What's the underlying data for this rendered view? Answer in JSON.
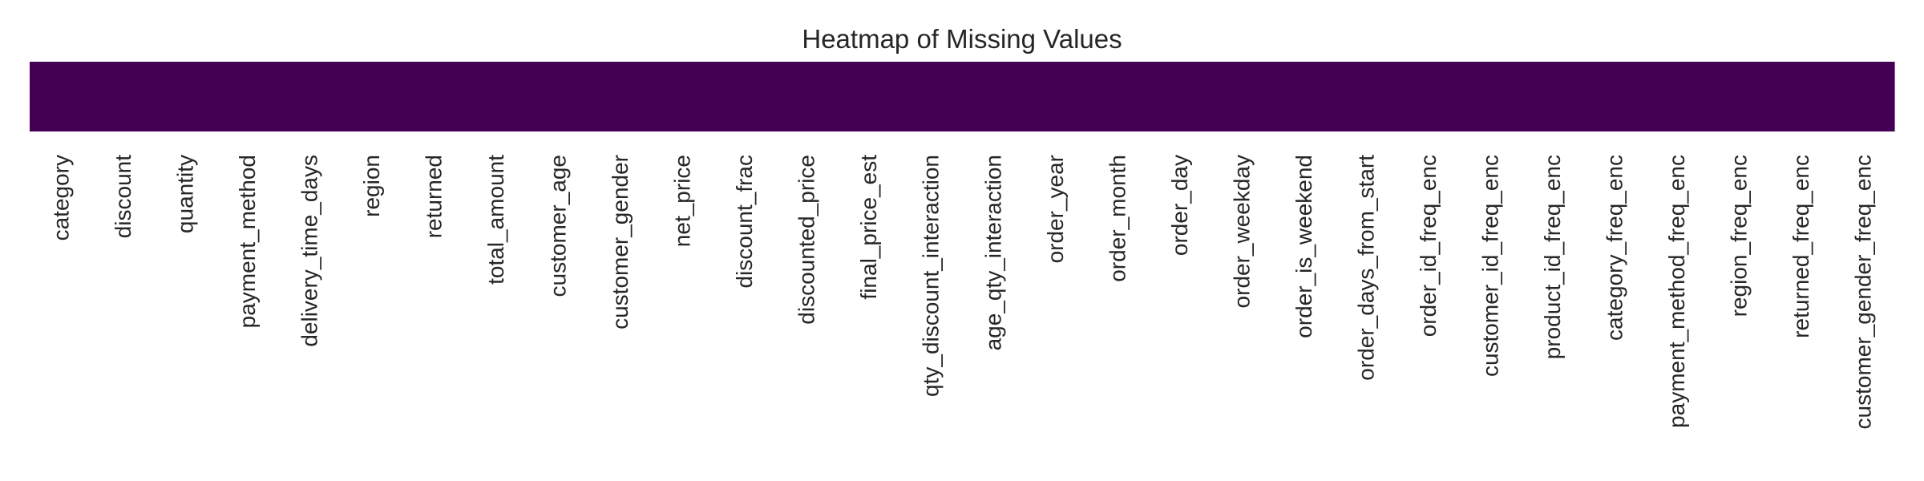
{
  "chart_data": {
    "type": "heatmap",
    "title": "Heatmap of Missing Values",
    "xlabel": "",
    "ylabel": "",
    "categories": [
      "category",
      "discount",
      "quantity",
      "payment_method",
      "delivery_time_days",
      "region",
      "returned",
      "total_amount",
      "customer_age",
      "customer_gender",
      "net_price",
      "discount_frac",
      "discounted_price",
      "final_price_est",
      "qty_discount_interaction",
      "age_qty_interaction",
      "order_year",
      "order_month",
      "order_day",
      "order_weekday",
      "order_is_weekend",
      "order_days_from_start",
      "order_id_freq_enc",
      "customer_id_freq_enc",
      "product_id_freq_enc",
      "category_freq_enc",
      "payment_method_freq_enc",
      "region_freq_enc",
      "returned_freq_enc",
      "customer_gender_freq_enc"
    ],
    "values": [
      0,
      0,
      0,
      0,
      0,
      0,
      0,
      0,
      0,
      0,
      0,
      0,
      0,
      0,
      0,
      0,
      0,
      0,
      0,
      0,
      0,
      0,
      0,
      0,
      0,
      0,
      0,
      0,
      0,
      0
    ],
    "colormap": "viridis",
    "colors": {
      "missing_false": "#440154",
      "missing_true": "#fde725"
    },
    "grid": false,
    "colorbar": false,
    "y_tick_labels": false
  }
}
